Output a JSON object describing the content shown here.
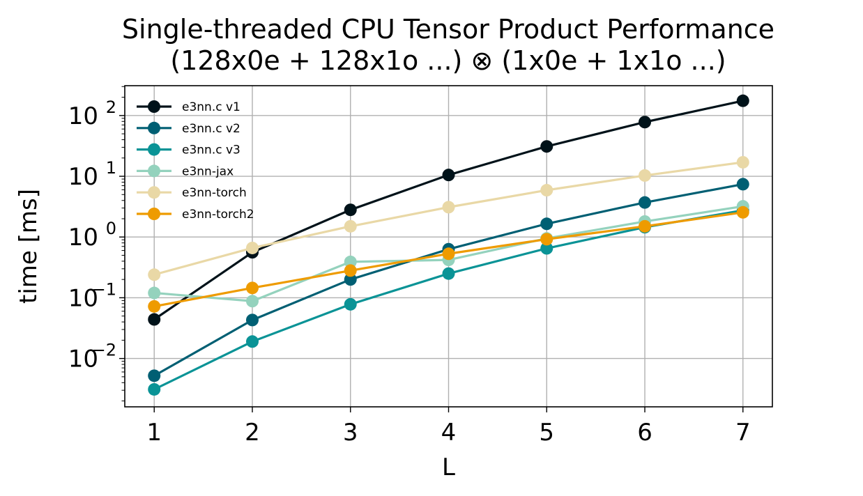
{
  "chart_data": {
    "type": "line",
    "title": [
      "Single-threaded CPU Tensor Product Performance",
      "(128x0e + 128x1o ...) ⊗ (1x0e + 1x1o ...)"
    ],
    "xlabel": "L",
    "ylabel": "time [ms]",
    "x": [
      1,
      2,
      3,
      4,
      5,
      6,
      7
    ],
    "xlim": [
      0.7,
      7.3
    ],
    "ylim": [
      0.0016,
      310
    ],
    "yscale": "log",
    "grid": true,
    "legend_position": "upper-left",
    "xticks": [
      "1",
      "2",
      "3",
      "4",
      "5",
      "6",
      "7"
    ],
    "yticks": [
      {
        "value": 0.01,
        "base": "10",
        "exp": "−2"
      },
      {
        "value": 0.1,
        "base": "10",
        "exp": "−1"
      },
      {
        "value": 1,
        "base": "10",
        "exp": "0"
      },
      {
        "value": 10,
        "base": "10",
        "exp": "1"
      },
      {
        "value": 100,
        "base": "10",
        "exp": "2"
      }
    ],
    "series": [
      {
        "name": "e3nn.c v1",
        "color": "#001219",
        "values": [
          0.044,
          0.56,
          2.8,
          10.5,
          31,
          78,
          175
        ]
      },
      {
        "name": "e3nn.c v2",
        "color": "#005f73",
        "values": [
          0.0052,
          0.043,
          0.2,
          0.63,
          1.65,
          3.7,
          7.4
        ]
      },
      {
        "name": "e3nn.c v3",
        "color": "#0a9396",
        "values": [
          0.0031,
          0.019,
          0.078,
          0.25,
          0.65,
          1.45,
          2.75
        ]
      },
      {
        "name": "e3nn-jax",
        "color": "#94d2bd",
        "values": [
          0.12,
          0.088,
          0.39,
          0.42,
          0.95,
          1.8,
          3.2
        ]
      },
      {
        "name": "e3nn-torch",
        "color": "#e9d8a6",
        "values": [
          0.24,
          0.66,
          1.5,
          3.1,
          5.9,
          10.3,
          17
        ]
      },
      {
        "name": "e3nn-torch2",
        "color": "#ee9b00",
        "values": [
          0.072,
          0.145,
          0.28,
          0.53,
          0.92,
          1.5,
          2.55
        ]
      }
    ]
  }
}
